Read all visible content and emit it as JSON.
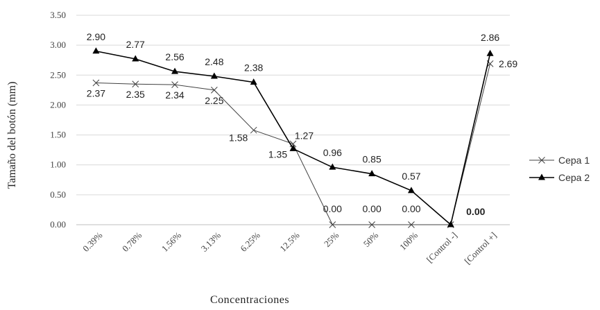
{
  "chart_data": {
    "type": "line",
    "categories": [
      "0.39%",
      "0.78%",
      "1.56%",
      "3.13%",
      "6.25%",
      "12.5%",
      "25%",
      "50%",
      "100%",
      "[Control -]",
      "[Control +]"
    ],
    "series": [
      {
        "name": "Cepa 1",
        "marker": "x",
        "color": "#404040",
        "values": [
          2.37,
          2.35,
          2.34,
          2.25,
          1.58,
          1.35,
          0.0,
          0.0,
          0.0,
          0.0,
          2.69
        ],
        "labels": [
          "2.37",
          "2.35",
          "2.34",
          "2.25",
          "1.58",
          "1.35",
          "0.00",
          "0.00",
          "0.00",
          "",
          "2.69"
        ]
      },
      {
        "name": "Cepa 2",
        "marker": "triangle",
        "color": "#000000",
        "values": [
          2.9,
          2.77,
          2.56,
          2.48,
          2.38,
          1.27,
          0.96,
          0.85,
          0.57,
          0.0,
          2.86
        ],
        "labels": [
          "2.90",
          "2.77",
          "2.56",
          "2.48",
          "2.38",
          "1.27",
          "0.96",
          "0.85",
          "0.57",
          "0.00",
          "2.86"
        ]
      }
    ],
    "y_ticks": [
      "0.00",
      "0.50",
      "1.00",
      "1.50",
      "2.00",
      "2.50",
      "3.00",
      "3.50"
    ],
    "ylim": [
      0,
      3.5
    ],
    "xlabel": "Concentraciones",
    "ylabel": "Tamaño del botón (mm)",
    "grid": true,
    "legend_position": "right"
  }
}
